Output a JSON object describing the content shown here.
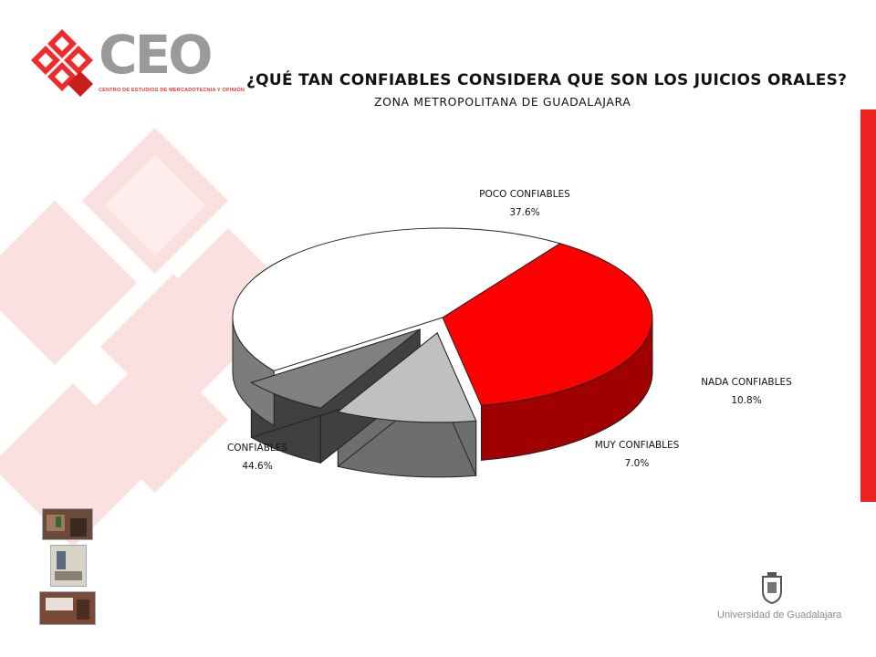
{
  "header": {
    "logo_text": "CEO",
    "logo_subtitle": "CENTRO DE ESTUDIOS DE MERCADOTECNIA Y OPINIÓN",
    "title": "¿QUÉ TAN CONFIABLES CONSIDERA QUE SON LOS JUICIOS ORALES?",
    "subtitle": "ZONA METROPOLITANA DE GUADALAJARA"
  },
  "chart_data": {
    "type": "pie",
    "title": "¿QUÉ TAN CONFIABLES CONSIDERA QUE SON LOS JUICIOS ORALES?",
    "subtitle": "ZONA METROPOLITANA DE GUADALAJARA",
    "slices": [
      {
        "label": "POCO CONFIABLES",
        "value": 37.6,
        "display": "37.6%",
        "color": "#ff0000",
        "exploded": false
      },
      {
        "label": "NADA CONFIABLES",
        "value": 10.8,
        "display": "10.8%",
        "color": "#c0c0c0",
        "exploded": true
      },
      {
        "label": "MUY CONFIABLES",
        "value": 7.0,
        "display": "7.0%",
        "color": "#808080",
        "exploded": true
      },
      {
        "label": "CONFIABLES",
        "value": 44.6,
        "display": "44.6%",
        "color": "#ffffff",
        "exploded": false
      }
    ],
    "three_d": true
  },
  "footer": {
    "university": "Universidad de Guadalajara"
  },
  "colors": {
    "accent_red": "#ef2020",
    "logo_gray": "#9a9a9a"
  }
}
